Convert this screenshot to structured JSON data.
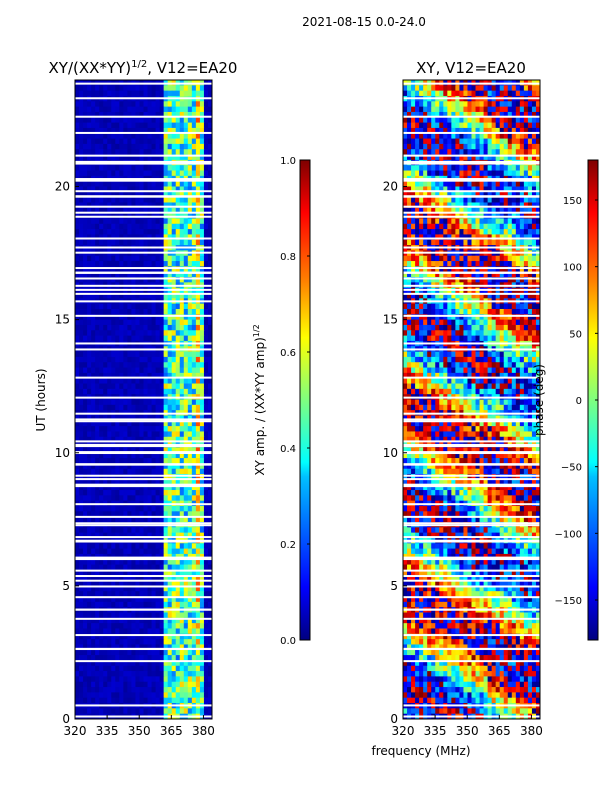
{
  "figure": {
    "suptitle": "2021-08-15 0.0-24.0",
    "shared_xlabel": "frequency (MHz)"
  },
  "chart_data": [
    {
      "type": "heatmap",
      "title": "XY/(XX*YY)",
      "title_superscript": "1/2",
      "title_suffix": ", V12=EA20",
      "xlabel": "",
      "ylabel": "UT (hours)",
      "xlim": [
        320,
        384
      ],
      "ylim": [
        0,
        24
      ],
      "xticks": [
        320,
        335,
        350,
        365,
        380
      ],
      "yticks": [
        0,
        5,
        10,
        15,
        20
      ],
      "colorscale": "jet",
      "colorbar": {
        "label": "XY amp. / (XX*YY amp)",
        "label_superscript": "1/2",
        "range": [
          0.0,
          1.0
        ],
        "ticks": [
          0.0,
          0.2,
          0.4,
          0.6,
          0.8,
          1.0
        ],
        "tick_labels": [
          "0.0",
          "0.2",
          "0.4",
          "0.6",
          "0.8",
          "1.0"
        ]
      },
      "structure": "Near-zero background (dark blue) below ~362 MHz; elevated amplitude (0.2-0.7, cyan/green/yellow) in vertical bands between ~362 and ~380 MHz; white horizontal gaps (flagged times) throughout."
    },
    {
      "type": "heatmap",
      "title": "XY, V12=EA20",
      "xlabel": "",
      "ylabel": "",
      "xlim": [
        320,
        384
      ],
      "ylim": [
        0,
        24
      ],
      "xticks": [
        320,
        335,
        350,
        365,
        380
      ],
      "yticks": [
        0,
        5,
        10,
        15,
        20
      ],
      "colorscale": "jet",
      "colorbar": {
        "label": "phase (deg)",
        "range": [
          -180,
          180
        ],
        "ticks": [
          -150,
          -100,
          -50,
          0,
          50,
          100,
          150
        ],
        "tick_labels": [
          "−150",
          "−100",
          "−50",
          "0",
          "50",
          "100",
          "150"
        ]
      },
      "structure": "Phase wraps across the full -180 to 180 deg range with banded red/orange, cyan/blue and yellow regions; white horizontal gaps at flagged times."
    }
  ],
  "colors": {
    "jet_stops": [
      "#00007f",
      "#0000ff",
      "#007fff",
      "#00ffff",
      "#7fff7f",
      "#ffff00",
      "#ff7f00",
      "#ff0000",
      "#7f0000"
    ]
  }
}
